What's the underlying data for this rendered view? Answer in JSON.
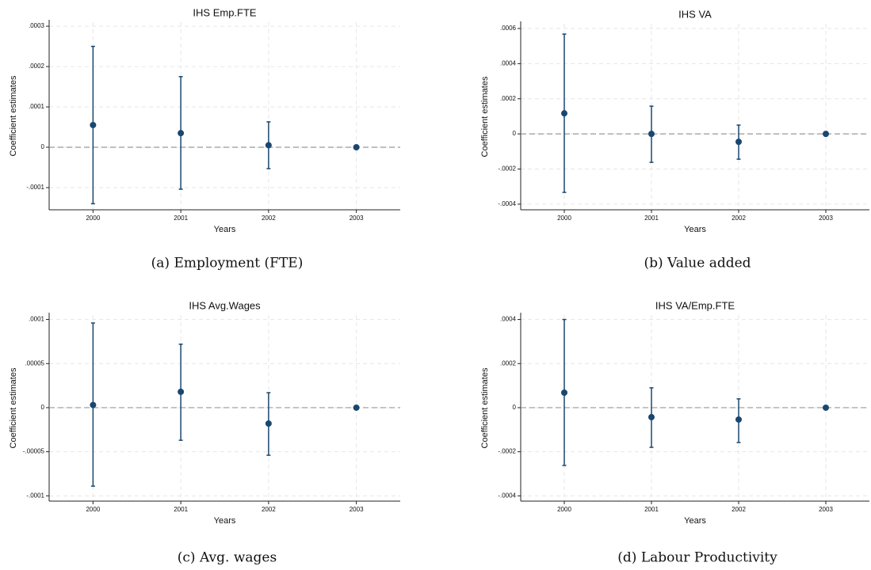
{
  "chart_data": [
    {
      "type": "errorbar",
      "title": "IHS Emp.FTE",
      "xlabel": "Years",
      "ylabel": "Coefficient estimates",
      "caption": "(a) Employment (FTE)",
      "x": [
        2000,
        2001,
        2002,
        2003
      ],
      "values": [
        5.5e-05,
        3.5e-05,
        5e-06,
        0
      ],
      "ci_low": [
        -0.00014,
        -0.000104,
        -5.3e-05,
        0
      ],
      "ci_high": [
        0.00025,
        0.000175,
        6.3e-05,
        0
      ],
      "color": "#1a476f",
      "xlim": [
        1999.5,
        2003.5
      ],
      "xticks": [
        2000,
        2001,
        2002,
        2003
      ],
      "ylim": [
        -0.000155,
        0.00031
      ],
      "yticks": [
        {
          "value": -0.0001,
          "label": "-.0001"
        },
        0,
        {
          "value": 0.0001,
          "label": ".0001"
        },
        {
          "value": 0.0002,
          "label": ".0002"
        },
        {
          "value": 0.0003,
          "label": ".0003"
        }
      ],
      "hline": 0,
      "grid": true
    },
    {
      "type": "errorbar",
      "title": "IHS VA",
      "xlabel": "Years",
      "ylabel": "Coefficient estimates",
      "caption": "(b) Value added",
      "x": [
        2000,
        2001,
        2002,
        2003
      ],
      "values": [
        0.000117,
        0,
        -4.5e-05,
        0
      ],
      "ci_low": [
        -0.000333,
        -0.000162,
        -0.000144,
        0
      ],
      "ci_high": [
        0.000568,
        0.000158,
        5e-05,
        0
      ],
      "color": "#1a476f",
      "xlim": [
        1999.5,
        2003.5
      ],
      "xticks": [
        2000,
        2001,
        2002,
        2003
      ],
      "ylim": [
        -0.000432,
        0.000627
      ],
      "yticks": [
        {
          "value": -0.0004,
          "label": "-.0004"
        },
        {
          "value": -0.0002,
          "label": "-.0002"
        },
        0,
        {
          "value": 0.0002,
          "label": ".0002"
        },
        {
          "value": 0.0004,
          "label": ".0004"
        },
        {
          "value": 0.0006,
          "label": ".0006"
        }
      ],
      "hline": 0,
      "grid": true
    },
    {
      "type": "errorbar",
      "title": "IHS Avg.Wages",
      "xlabel": "Years",
      "ylabel": "Coefficient estimates",
      "caption": "(c) Avg. wages",
      "x": [
        2000,
        2001,
        2002,
        2003
      ],
      "values": [
        3e-06,
        1.8e-05,
        -1.8e-05,
        0
      ],
      "ci_low": [
        -8.9e-05,
        -3.7e-05,
        -5.4e-05,
        0
      ],
      "ci_high": [
        9.6e-05,
        7.2e-05,
        1.7e-05,
        0
      ],
      "color": "#1a476f",
      "xlim": [
        1999.5,
        2003.5
      ],
      "xticks": [
        2000,
        2001,
        2002,
        2003
      ],
      "ylim": [
        -0.000106,
        0.000105
      ],
      "yticks": [
        {
          "value": -0.0001,
          "label": "-.0001"
        },
        {
          "value": -5e-05,
          "label": "-.00005"
        },
        0,
        {
          "value": 5e-05,
          "label": ".00005"
        },
        {
          "value": 0.0001,
          "label": ".0001"
        }
      ],
      "hline": 0,
      "grid": true
    },
    {
      "type": "errorbar",
      "title": "IHS VA/Emp.FTE",
      "xlabel": "Years",
      "ylabel": "Coefficient estimates",
      "caption": "(d) Labour Productivity",
      "x": [
        2000,
        2001,
        2002,
        2003
      ],
      "values": [
        6.8e-05,
        -4.3e-05,
        -5.4e-05,
        0
      ],
      "ci_low": [
        -0.000262,
        -0.00018,
        -0.000158,
        0
      ],
      "ci_high": [
        0.0004,
        9e-05,
        4e-05,
        0
      ],
      "color": "#1a476f",
      "xlim": [
        1999.5,
        2003.5
      ],
      "xticks": [
        2000,
        2001,
        2002,
        2003
      ],
      "ylim": [
        -0.000424,
        0.00042
      ],
      "yticks": [
        {
          "value": -0.0004,
          "label": "-.0004"
        },
        {
          "value": -0.0002,
          "label": "-.0002"
        },
        0,
        {
          "value": 0.0002,
          "label": ".0002"
        },
        {
          "value": 0.0004,
          "label": ".0004"
        }
      ],
      "hline": 0,
      "grid": true
    }
  ]
}
